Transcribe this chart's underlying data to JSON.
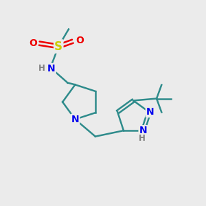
{
  "bg_color": "#ebebeb",
  "bond_color": "#2e8b8b",
  "n_color": "#0000ee",
  "o_color": "#ee0000",
  "s_color": "#cccc00",
  "h_color": "#808080",
  "line_width": 1.8,
  "font_size": 10,
  "small_font_size": 8.5,
  "figsize": [
    3.0,
    3.0
  ],
  "dpi": 100,
  "xlim": [
    0,
    10
  ],
  "ylim": [
    0,
    10
  ]
}
